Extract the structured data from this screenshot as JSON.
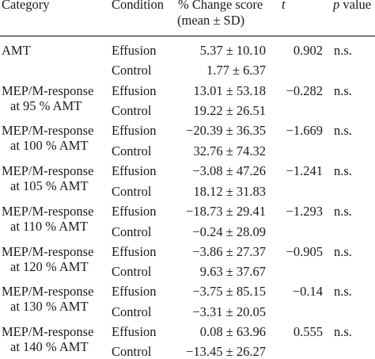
{
  "headers": {
    "category": "Category",
    "condition": "Condition",
    "score_line1": "% Change score",
    "score_line2": "(mean ± SD)",
    "t": "t",
    "p": "p value"
  },
  "rows": [
    {
      "cat1": "AMT",
      "cat2": "",
      "cond1": "Effusion",
      "score1": "5.37 ± 10.10",
      "cond2": "Control",
      "score2": "1.77 ± 6.37",
      "t": "0.902",
      "p": "n.s."
    },
    {
      "cat1": "MEP/M-response",
      "cat2": "at 95 % AMT",
      "cond1": "Effusion",
      "score1": "13.01 ± 53.18",
      "cond2": "Control",
      "score2": "19.22 ± 26.51",
      "t": "−0.282",
      "p": "n.s."
    },
    {
      "cat1": "MEP/M-response",
      "cat2": "at 100 % AMT",
      "cond1": "Effusion",
      "score1": "−20.39 ± 36.35",
      "cond2": "Control",
      "score2": "32.76 ± 74.32",
      "t": "−1.669",
      "p": "n.s."
    },
    {
      "cat1": "MEP/M-response",
      "cat2": "at 105 % AMT",
      "cond1": "Effusion",
      "score1": "−3.08 ± 47.26",
      "cond2": "Control",
      "score2": "18.12 ± 31.83",
      "t": "−1.241",
      "p": "n.s."
    },
    {
      "cat1": "MEP/M-response",
      "cat2": "at 110 % AMT",
      "cond1": "Effusion",
      "score1": "−18.73 ± 29.41",
      "cond2": "Control",
      "score2": "−0.24 ± 28.09",
      "t": "−1.293",
      "p": "n.s."
    },
    {
      "cat1": "MEP/M-response",
      "cat2": "at 120 % AMT",
      "cond1": "Effusion",
      "score1": "−3.86 ± 27.37",
      "cond2": "Control",
      "score2": "9.63 ± 37.67",
      "t": "−0.905",
      "p": "n.s."
    },
    {
      "cat1": "MEP/M-response",
      "cat2": "at 130 % AMT",
      "cond1": "Effusion",
      "score1": "−3.75 ± 85.15",
      "cond2": "Control",
      "score2": "−3.31 ± 20.05",
      "t": "−0.14",
      "p": "n.s."
    },
    {
      "cat1": "MEP/M-response",
      "cat2": "at 140 % AMT",
      "cond1": "Effusion",
      "score1": "0.08 ± 63.96",
      "cond2": "Control",
      "score2": "−13.45 ± 26.27",
      "t": "0.555",
      "p": "n.s."
    }
  ]
}
